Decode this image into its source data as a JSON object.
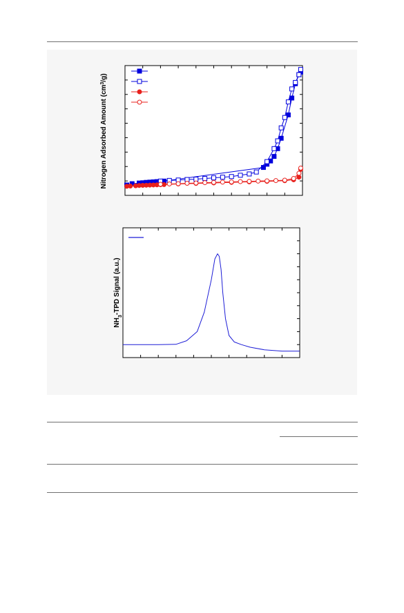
{
  "figure": {
    "panel_a": {
      "ylabel_main": "Nitrogen Adsorbed Amount (cm",
      "ylabel_sup": "3",
      "ylabel_tail": "/g)"
    },
    "panel_b": {
      "ylabel_main": "NH",
      "ylabel_sub": "3",
      "ylabel_tail": "-TPD Signal (a.u.)"
    }
  },
  "chart_data": [
    {
      "type": "scatter",
      "title": "",
      "xlabel": "",
      "ylabel": "Nitrogen Adsorbed Amount (cm3/g)",
      "xlim": [
        0,
        1
      ],
      "ylim": [
        0,
        1
      ],
      "legend": "top-left",
      "grid": false,
      "series": [
        {
          "color": "#0000dd",
          "marker": "filled-square",
          "x": [
            0.01,
            0.04,
            0.08,
            0.1,
            0.12,
            0.14,
            0.16,
            0.18,
            0.2,
            0.22,
            0.78,
            0.8,
            0.82,
            0.84,
            0.86,
            0.88,
            0.92,
            0.94,
            0.96,
            0.98,
            0.99
          ],
          "y": [
            0.08,
            0.09,
            0.095,
            0.097,
            0.1,
            0.102,
            0.104,
            0.106,
            0.108,
            0.11,
            0.215,
            0.24,
            0.265,
            0.3,
            0.36,
            0.44,
            0.62,
            0.75,
            0.86,
            0.93,
            0.95
          ]
        },
        {
          "color": "#0000dd",
          "marker": "open-square",
          "x": [
            0.2,
            0.25,
            0.3,
            0.35,
            0.4,
            0.45,
            0.5,
            0.55,
            0.6,
            0.65,
            0.7,
            0.74,
            0.8,
            0.84,
            0.86,
            0.88,
            0.9,
            0.92,
            0.94,
            0.96,
            0.98,
            0.99
          ],
          "y": [
            0.11,
            0.115,
            0.118,
            0.122,
            0.125,
            0.13,
            0.135,
            0.14,
            0.145,
            0.155,
            0.165,
            0.18,
            0.26,
            0.36,
            0.42,
            0.52,
            0.6,
            0.72,
            0.82,
            0.87,
            0.93,
            0.97
          ]
        },
        {
          "color": "#e8201c",
          "marker": "filled-circle",
          "x": [
            0.01,
            0.03,
            0.06,
            0.08,
            0.1,
            0.12,
            0.14,
            0.16,
            0.18,
            0.2,
            0.22,
            0.3,
            0.4,
            0.5,
            0.6,
            0.7,
            0.8,
            0.9,
            0.95,
            0.98,
            0.99
          ],
          "y": [
            0.07,
            0.072,
            0.074,
            0.076,
            0.077,
            0.078,
            0.079,
            0.08,
            0.081,
            0.082,
            0.083,
            0.088,
            0.092,
            0.096,
            0.1,
            0.104,
            0.108,
            0.113,
            0.12,
            0.14,
            0.2
          ]
        },
        {
          "color": "#e8201c",
          "marker": "open-circle",
          "x": [
            0.2,
            0.25,
            0.3,
            0.35,
            0.4,
            0.45,
            0.5,
            0.55,
            0.6,
            0.65,
            0.7,
            0.75,
            0.8,
            0.85,
            0.9,
            0.95,
            0.98,
            0.99
          ],
          "y": [
            0.085,
            0.088,
            0.09,
            0.093,
            0.095,
            0.098,
            0.1,
            0.102,
            0.104,
            0.106,
            0.108,
            0.11,
            0.112,
            0.114,
            0.117,
            0.13,
            0.17,
            0.21
          ]
        }
      ]
    },
    {
      "type": "line",
      "title": "",
      "xlabel": "",
      "ylabel": "NH3-TPD Signal (a.u.)",
      "xlim": [
        0,
        1
      ],
      "ylim": [
        0,
        1
      ],
      "legend": "top-left",
      "grid": false,
      "series": [
        {
          "color": "#1c1cd6",
          "x": [
            0,
            0.1,
            0.2,
            0.3,
            0.36,
            0.42,
            0.46,
            0.5,
            0.52,
            0.535,
            0.545,
            0.555,
            0.565,
            0.58,
            0.6,
            0.63,
            0.67,
            0.72,
            0.8,
            0.9,
            1.0
          ],
          "y": [
            0.1,
            0.1,
            0.1,
            0.102,
            0.13,
            0.2,
            0.35,
            0.6,
            0.76,
            0.8,
            0.78,
            0.68,
            0.5,
            0.3,
            0.17,
            0.12,
            0.1,
            0.08,
            0.06,
            0.05,
            0.05
          ]
        }
      ]
    }
  ],
  "table": {
    "caption": "",
    "rows": []
  }
}
